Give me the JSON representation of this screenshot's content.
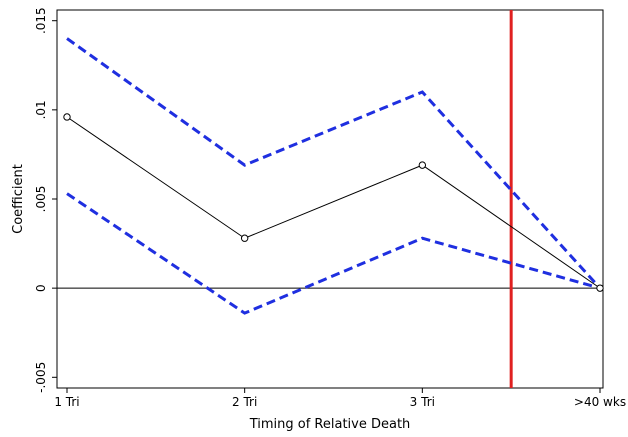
{
  "chart_data": {
    "type": "line",
    "categories": [
      "1 Tri",
      "2 Tri",
      "3 Tri",
      ">40 wks"
    ],
    "series": [
      {
        "role": "estimate",
        "values": [
          0.0096,
          0.0028,
          0.0069,
          0.0
        ],
        "color": "#000000",
        "style": "solid",
        "marker": "hollow-circle"
      },
      {
        "role": "upper-ci",
        "values": [
          0.014,
          0.0069,
          0.011,
          0.0
        ],
        "color": "#1f2fe0",
        "style": "dashed"
      },
      {
        "role": "lower-ci",
        "values": [
          0.0053,
          -0.0014,
          0.0028,
          0.0
        ],
        "color": "#1f2fe0",
        "style": "dashed"
      }
    ],
    "ylim": [
      -0.0056,
      0.0156
    ],
    "yticks": [
      {
        "value": -0.005,
        "label": "-.005"
      },
      {
        "value": 0,
        "label": "0"
      },
      {
        "value": 0.005,
        "label": ".005"
      },
      {
        "value": 0.01,
        "label": ".01"
      },
      {
        "value": 0.015,
        "label": ".015"
      }
    ],
    "xlabel": "Timing of Relative Death",
    "ylabel": "Coefficient",
    "reference_line_y": 0,
    "reference_line_y_color": "#000000",
    "vertical_line_x": 2.5,
    "vertical_line_color": "#e02020",
    "grid": false,
    "legend": "none"
  }
}
